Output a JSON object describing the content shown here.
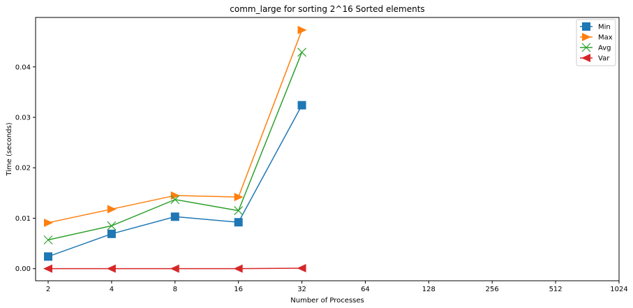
{
  "chart_data": {
    "type": "line",
    "title": "comm_large for sorting 2^16 Sorted elements",
    "xlabel": "Number of Processes",
    "ylabel": "Time (seconds)",
    "x_scale": "log2",
    "x_ticks": [
      "2",
      "4",
      "8",
      "16",
      "32",
      "64",
      "128",
      "256",
      "512",
      "1024"
    ],
    "x": [
      2,
      4,
      8,
      16,
      32
    ],
    "y_ticks": [
      "0.00",
      "0.01",
      "0.02",
      "0.03",
      "0.04"
    ],
    "ylim": [
      -0.0024,
      0.0498
    ],
    "grid": false,
    "legend_position": "top-right",
    "series": [
      {
        "name": "Min",
        "color": "#1f77b4",
        "marker": "square",
        "values": [
          0.0024,
          0.0069,
          0.0103,
          0.0092,
          0.0324
        ]
      },
      {
        "name": "Max",
        "color": "#ff7f0e",
        "marker": "triangle-right",
        "values": [
          0.0091,
          0.0118,
          0.0145,
          0.0142,
          0.0473
        ]
      },
      {
        "name": "Avg",
        "color": "#2ca02c",
        "marker": "x",
        "values": [
          0.0057,
          0.0085,
          0.0137,
          0.0115,
          0.0429
        ]
      },
      {
        "name": "Var",
        "color": "#d62728",
        "marker": "triangle-left",
        "values": [
          0.0,
          0.0,
          0.0,
          0.0,
          0.0001
        ]
      }
    ]
  }
}
